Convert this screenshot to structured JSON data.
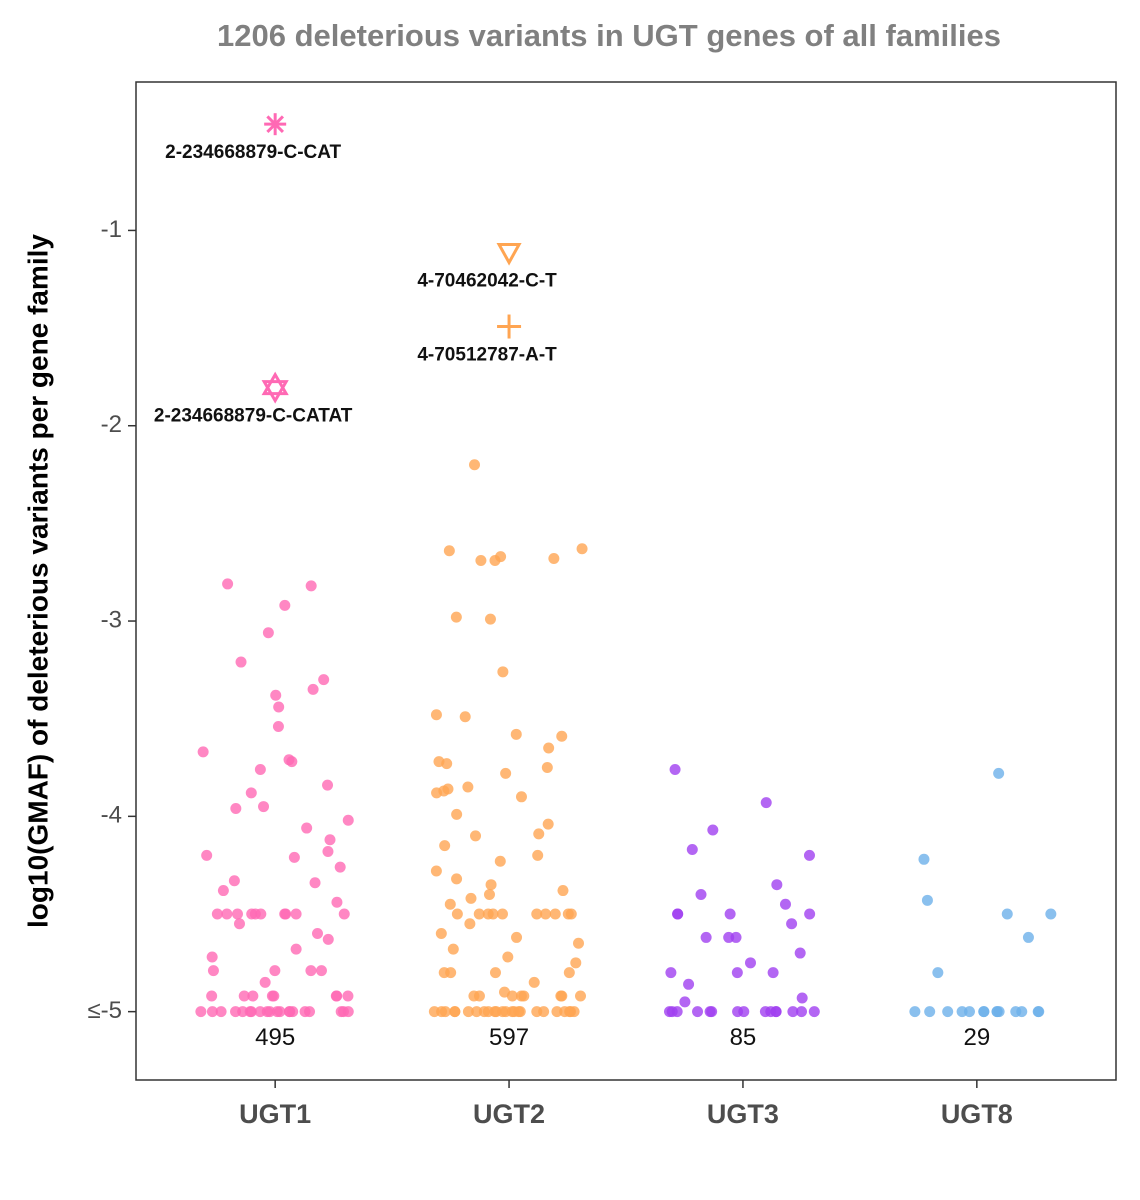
{
  "chart_data": {
    "type": "strip",
    "title": "1206 deleterious variants in UGT genes of all families",
    "y_label": "log10(GMAF) of deleterious variants per gene family",
    "ylim": [
      -5.35,
      -0.24
    ],
    "yticks": [
      -1,
      -2,
      -3,
      -4,
      {
        "value": -5,
        "label": "≤-5"
      }
    ],
    "series": [
      {
        "name": "UGT1",
        "color": "#ff69b4",
        "count": 495,
        "values": [
          -2.81,
          -2.82,
          -2.92,
          -3.06,
          -3.21,
          -3.3,
          -3.35,
          -3.38,
          -3.44,
          -3.54,
          -3.67,
          -3.71,
          -3.72,
          -3.76,
          -3.84,
          -3.88,
          -3.95,
          -3.96,
          -4.02,
          -4.06,
          -4.12,
          -4.18,
          -4.2,
          -4.21,
          -4.26,
          -4.33,
          -4.34,
          -4.38,
          -4.44,
          -4.5,
          -4.5,
          -4.5,
          -4.5,
          -4.5,
          -4.5,
          -4.5,
          -4.5,
          -4.5,
          -4.5,
          -4.55,
          -4.6,
          -4.63,
          -4.68,
          -4.72,
          -4.79,
          -4.79,
          -4.79,
          -4.79,
          -4.85,
          -4.92,
          -4.92,
          -4.92,
          -4.92,
          -4.92,
          -4.92,
          -4.92,
          -4.92,
          -5,
          -5,
          -5,
          -5,
          -5,
          -5,
          -5,
          -5,
          -5,
          -5,
          -5,
          -5,
          -5,
          -5,
          -5,
          -5,
          -5,
          -5,
          -5,
          -5
        ],
        "outliers": [
          {
            "label": "2-234668879-C-CAT",
            "value": -0.456,
            "shape": "asterisk"
          },
          {
            "label": "2-234668879-C-CATAT",
            "value": -1.805,
            "shape": "hexagram"
          }
        ]
      },
      {
        "name": "UGT2",
        "color": "#ffa552",
        "count": 597,
        "values": [
          -2.2,
          -2.63,
          -2.64,
          -2.67,
          -2.68,
          -2.69,
          -2.69,
          -2.98,
          -2.99,
          -3.26,
          -3.48,
          -3.49,
          -3.58,
          -3.59,
          -3.65,
          -3.72,
          -3.73,
          -3.75,
          -3.78,
          -3.85,
          -3.86,
          -3.87,
          -3.88,
          -3.9,
          -3.99,
          -4.04,
          -4.09,
          -4.1,
          -4.15,
          -4.2,
          -4.23,
          -4.28,
          -4.32,
          -4.35,
          -4.38,
          -4.4,
          -4.42,
          -4.45,
          -4.5,
          -4.5,
          -4.5,
          -4.5,
          -4.5,
          -4.5,
          -4.5,
          -4.5,
          -4.5,
          -4.5,
          -4.55,
          -4.6,
          -4.62,
          -4.65,
          -4.68,
          -4.72,
          -4.75,
          -4.8,
          -4.8,
          -4.8,
          -4.8,
          -4.85,
          -4.9,
          -4.92,
          -4.92,
          -4.92,
          -4.92,
          -4.92,
          -4.92,
          -4.92,
          -4.92,
          -5,
          -5,
          -5,
          -5,
          -5,
          -5,
          -5,
          -5,
          -5,
          -5,
          -5,
          -5,
          -5,
          -5,
          -5,
          -5,
          -5,
          -5,
          -5,
          -5,
          -5,
          -5,
          -5,
          -5
        ],
        "outliers": [
          {
            "label": "4-70462042-C-T",
            "value": -1.113,
            "shape": "triangle-down"
          },
          {
            "label": "4-70512787-A-T",
            "value": -1.492,
            "shape": "plus"
          }
        ]
      },
      {
        "name": "UGT3",
        "color": "#a040f0",
        "count": 85,
        "values": [
          -3.76,
          -3.93,
          -4.07,
          -4.17,
          -4.2,
          -4.35,
          -4.4,
          -4.45,
          -4.5,
          -4.5,
          -4.5,
          -4.5,
          -4.55,
          -4.62,
          -4.62,
          -4.62,
          -4.7,
          -4.75,
          -4.8,
          -4.8,
          -4.8,
          -4.86,
          -4.93,
          -4.95,
          -5,
          -5,
          -5,
          -5,
          -5,
          -5,
          -5,
          -5,
          -5,
          -5,
          -5,
          -5,
          -5,
          -5,
          -5
        ]
      },
      {
        "name": "UGT8",
        "color": "#6db0ea",
        "count": 29,
        "values": [
          -3.78,
          -4.22,
          -4.43,
          -4.5,
          -4.5,
          -4.62,
          -4.8,
          -5,
          -5,
          -5,
          -5,
          -5,
          -5,
          -5,
          -5,
          -5,
          -5,
          -5,
          -5,
          -5,
          -5
        ]
      }
    ]
  }
}
